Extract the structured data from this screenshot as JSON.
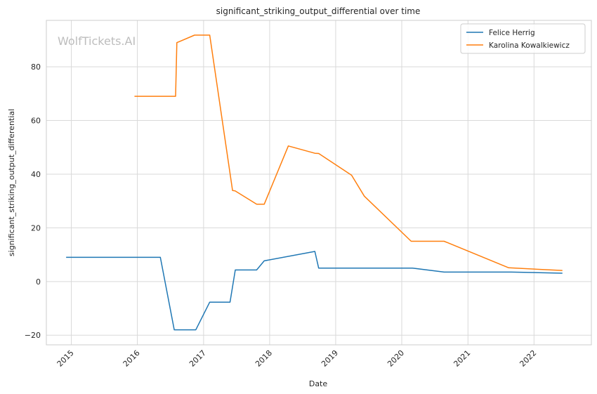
{
  "chart_data": {
    "type": "line",
    "title": "significant_striking_output_differential over time",
    "xlabel": "Date",
    "ylabel": "significant_striking_output_differential",
    "watermark": "WolfTickets.AI",
    "grid": true,
    "legend_position": "top-right",
    "x_ticks": [
      "2015",
      "2016",
      "2017",
      "2018",
      "2019",
      "2020",
      "2021",
      "2022"
    ],
    "y_ticks": [
      -20,
      0,
      20,
      40,
      60,
      80
    ],
    "xlim": [
      "2014-08-16",
      "2022-11-14"
    ],
    "ylim": [
      -23.6,
      97.3
    ],
    "series": [
      {
        "name": "Felice Herrig",
        "color": "#1f77b4",
        "points": [
          [
            "2014-12-06",
            9.0
          ],
          [
            "2016-05-07",
            9.0
          ],
          [
            "2016-07-23",
            -18.0
          ],
          [
            "2016-11-19",
            -18.0
          ],
          [
            "2017-02-04",
            -7.7
          ],
          [
            "2017-05-27",
            -7.7
          ],
          [
            "2017-06-25",
            4.3
          ],
          [
            "2017-10-21",
            4.3
          ],
          [
            "2017-12-02",
            7.7
          ],
          [
            "2018-09-08",
            11.2
          ],
          [
            "2018-09-29",
            5.0
          ],
          [
            "2020-02-29",
            5.0
          ],
          [
            "2020-08-22",
            3.5
          ],
          [
            "2021-08-28",
            3.5
          ],
          [
            "2022-06-04",
            3.1
          ]
        ]
      },
      {
        "name": "Karolina Kowalkiewicz",
        "color": "#ff7f0e",
        "points": [
          [
            "2015-12-19",
            69.0
          ],
          [
            "2016-07-30",
            69.0
          ],
          [
            "2016-08-06",
            89.0
          ],
          [
            "2016-11-12",
            91.8
          ],
          [
            "2017-02-04",
            91.8
          ],
          [
            "2017-06-10",
            33.9
          ],
          [
            "2017-06-24",
            33.8
          ],
          [
            "2017-10-21",
            28.8
          ],
          [
            "2017-12-02",
            28.8
          ],
          [
            "2018-04-14",
            50.5
          ],
          [
            "2018-09-08",
            47.8
          ],
          [
            "2018-09-29",
            47.7
          ],
          [
            "2019-03-30",
            39.6
          ],
          [
            "2019-06-08",
            31.8
          ],
          [
            "2020-02-22",
            15.0
          ],
          [
            "2020-08-22",
            15.0
          ],
          [
            "2021-08-14",
            5.1
          ],
          [
            "2022-06-04",
            4.1
          ]
        ]
      }
    ]
  }
}
